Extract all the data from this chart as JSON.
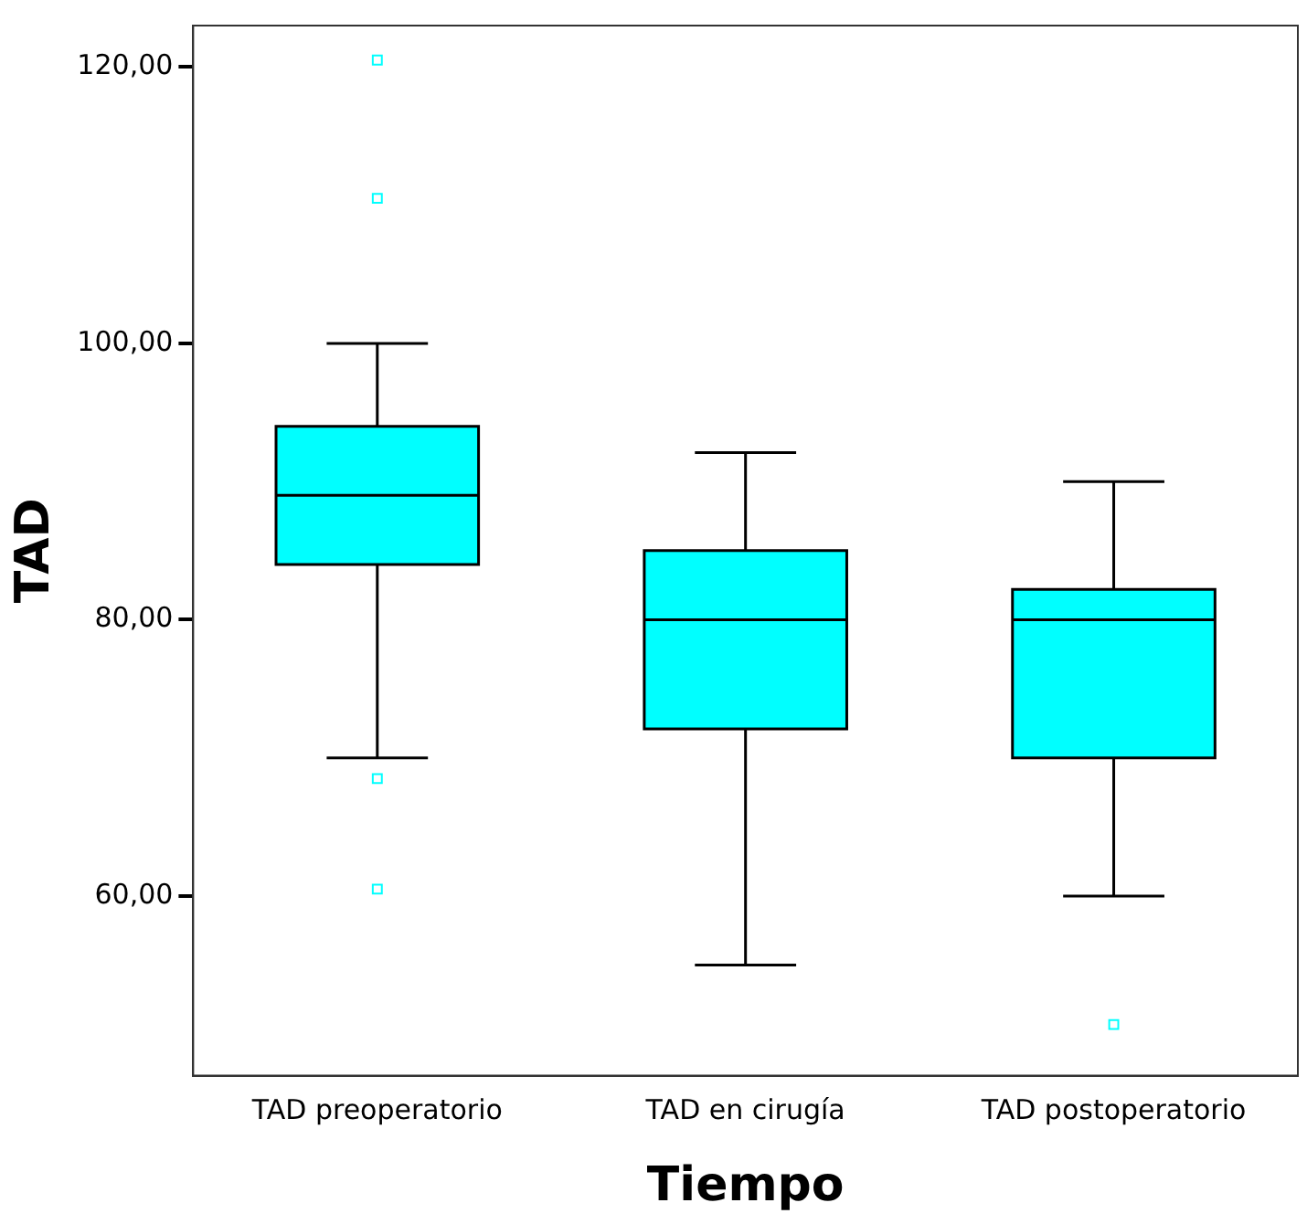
{
  "chart_data": {
    "type": "box",
    "xlabel": "Tiempo",
    "ylabel": "TAD",
    "categories": [
      "TAD preoperatorio",
      "TAD en cirugía",
      "TAD postoperatorio"
    ],
    "color": "#00ffff",
    "boxes": [
      {
        "low": 70,
        "q1": 84,
        "median": 89,
        "q3": 94,
        "high": 100,
        "outliers": [
          120.5,
          110.5,
          68.5,
          60.5
        ]
      },
      {
        "low": 55,
        "q1": 72.1,
        "median": 80,
        "q3": 85,
        "high": 92.1
      },
      {
        "low": 60,
        "q1": 70,
        "median": 80,
        "q3": 82.2,
        "high": 90,
        "outliers": [
          50.7
        ]
      }
    ],
    "ylim": [
      47,
      123
    ],
    "yticks": [
      {
        "value": 60,
        "label": "60,00"
      },
      {
        "value": 80,
        "label": "80,00"
      },
      {
        "value": 100,
        "label": "100,00"
      },
      {
        "value": 120,
        "label": "120,00"
      }
    ],
    "grid": false,
    "legend": false,
    "marker": "square"
  }
}
